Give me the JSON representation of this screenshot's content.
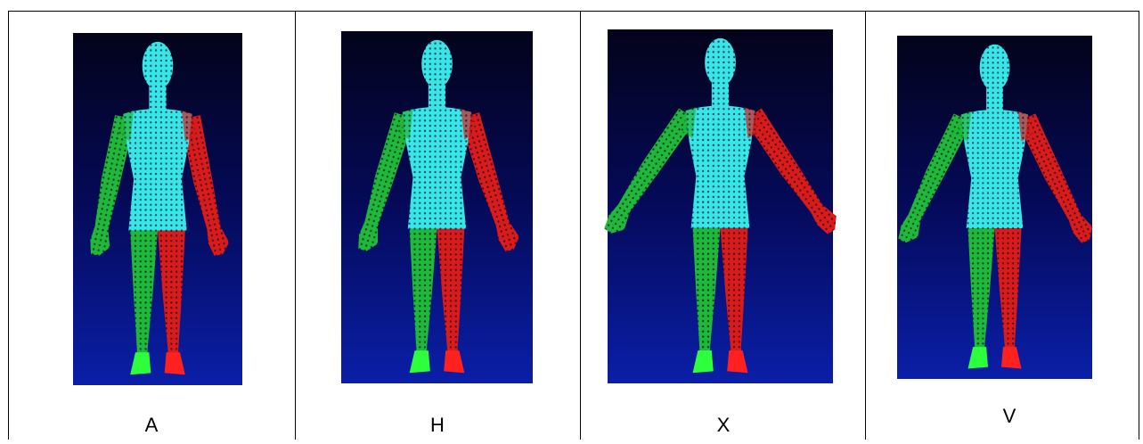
{
  "figure": {
    "cells": [
      {
        "label": "A"
      },
      {
        "label": "H"
      },
      {
        "label": "X"
      },
      {
        "label": "V"
      }
    ]
  }
}
